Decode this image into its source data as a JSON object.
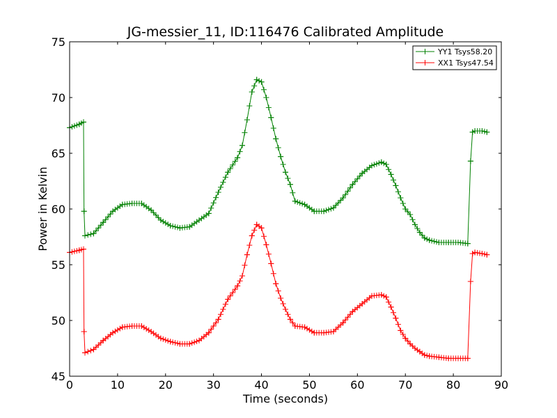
{
  "chart_data": {
    "type": "line",
    "title": "JG-messier_11, ID:116476 Calibrated Amplitude",
    "xlabel": "Time (seconds)",
    "ylabel": "Power in Kelvin",
    "xlim": [
      0,
      90
    ],
    "ylim": [
      45,
      75
    ],
    "xticks": [
      0,
      10,
      20,
      30,
      40,
      50,
      60,
      70,
      80,
      90
    ],
    "yticks": [
      45,
      50,
      55,
      60,
      65,
      70,
      75
    ],
    "grid": false,
    "legend_position": "top-right",
    "marker": "plus",
    "x": [
      0,
      2,
      2.9,
      3,
      3.2,
      5,
      7,
      9,
      11,
      13,
      15,
      17,
      19,
      21,
      23,
      25,
      27,
      29,
      31,
      33,
      35,
      36,
      37,
      38,
      39,
      40,
      41,
      42,
      43,
      44,
      45,
      46,
      47,
      49,
      51,
      53,
      55,
      57,
      59,
      61,
      63,
      65,
      66,
      67,
      68,
      69,
      70,
      71,
      72,
      73,
      74,
      75,
      77,
      79,
      81,
      83,
      83.6,
      84,
      84.5,
      86,
      87
    ],
    "series": [
      {
        "name": "YY1 Tsys58.20",
        "color": "#008000",
        "values": [
          67.3,
          67.6,
          67.8,
          59.8,
          57.6,
          57.8,
          58.8,
          59.8,
          60.4,
          60.5,
          60.5,
          59.9,
          59.0,
          58.5,
          58.3,
          58.4,
          59.0,
          59.6,
          61.5,
          63.3,
          64.6,
          65.7,
          68.0,
          70.5,
          71.6,
          71.4,
          70.0,
          68.2,
          66.3,
          64.7,
          63.3,
          62.2,
          60.7,
          60.4,
          59.8,
          59.8,
          60.1,
          61.0,
          62.2,
          63.2,
          63.9,
          64.2,
          64.0,
          63.1,
          62.1,
          61.0,
          60.0,
          59.5,
          58.6,
          57.9,
          57.4,
          57.2,
          57.0,
          57.0,
          57.0,
          56.9,
          64.3,
          66.9,
          67.0,
          67.0,
          66.9
        ]
      },
      {
        "name": "XX1 Tsys47.54",
        "color": "#ff0000",
        "values": [
          56.1,
          56.3,
          56.4,
          49.0,
          47.1,
          47.4,
          48.2,
          48.9,
          49.4,
          49.5,
          49.5,
          49.0,
          48.4,
          48.1,
          47.9,
          47.9,
          48.2,
          48.9,
          50.1,
          51.9,
          53.1,
          54.0,
          55.9,
          57.6,
          58.6,
          58.3,
          56.8,
          55.1,
          53.3,
          52.0,
          51.0,
          50.1,
          49.5,
          49.4,
          48.9,
          48.9,
          49.0,
          49.8,
          50.8,
          51.5,
          52.2,
          52.3,
          52.1,
          51.2,
          50.2,
          49.1,
          48.4,
          47.9,
          47.5,
          47.2,
          46.9,
          46.8,
          46.7,
          46.6,
          46.6,
          46.6,
          53.5,
          56.0,
          56.1,
          56.0,
          55.9
        ]
      }
    ]
  }
}
